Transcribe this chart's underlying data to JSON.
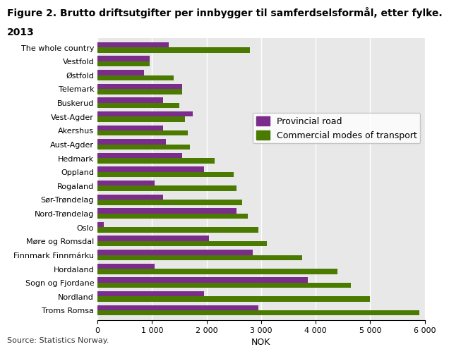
{
  "title_line1": "Figure 2. Brutto driftsutgifter per innbygger til samferdselsformål, etter fylke.",
  "title_line2": "2013",
  "categories": [
    "The whole country",
    "Vestfold",
    "Østfold",
    "Telemark",
    "Buskerud",
    "Vest-Agder",
    "Akershus",
    "Aust-Agder",
    "Hedmark",
    "Oppland",
    "Rogaland",
    "Sør-Trøndelag",
    "Nord-Trøndelag",
    "Oslo",
    "Møre og Romsdal",
    "Finnmark Finnmárku",
    "Hordaland",
    "Sogn og Fjordane",
    "Nordland",
    "Troms Romsa"
  ],
  "provincial_road": [
    1300,
    950,
    850,
    1550,
    1200,
    1750,
    1200,
    1250,
    1550,
    1950,
    1050,
    1200,
    2550,
    120,
    2050,
    2850,
    1050,
    3850,
    1950,
    2950
  ],
  "commercial_transport": [
    2800,
    950,
    1400,
    1550,
    1500,
    1600,
    1650,
    1700,
    2150,
    2500,
    2550,
    2650,
    2750,
    2950,
    3100,
    3750,
    4400,
    4650,
    5000,
    5900
  ],
  "color_provincial": "#7B2D8B",
  "color_commercial": "#4B7A00",
  "xlabel": "NOK",
  "xlim": [
    0,
    6000
  ],
  "xticks": [
    0,
    1000,
    2000,
    3000,
    4000,
    5000,
    6000
  ],
  "xtick_labels": [
    "0",
    "1 000",
    "2 000",
    "3 000",
    "4 000",
    "5 000",
    "6 000"
  ],
  "legend_labels": [
    "Provincial road",
    "Commercial modes of transport"
  ],
  "source": "Source: Statistics Norway.",
  "plot_bg_color": "#e8e8e8",
  "fig_bg_color": "#ffffff",
  "grid_color": "#ffffff",
  "bar_height": 0.38,
  "title_fontsize": 10,
  "axis_fontsize": 9,
  "tick_fontsize": 8,
  "legend_fontsize": 9
}
